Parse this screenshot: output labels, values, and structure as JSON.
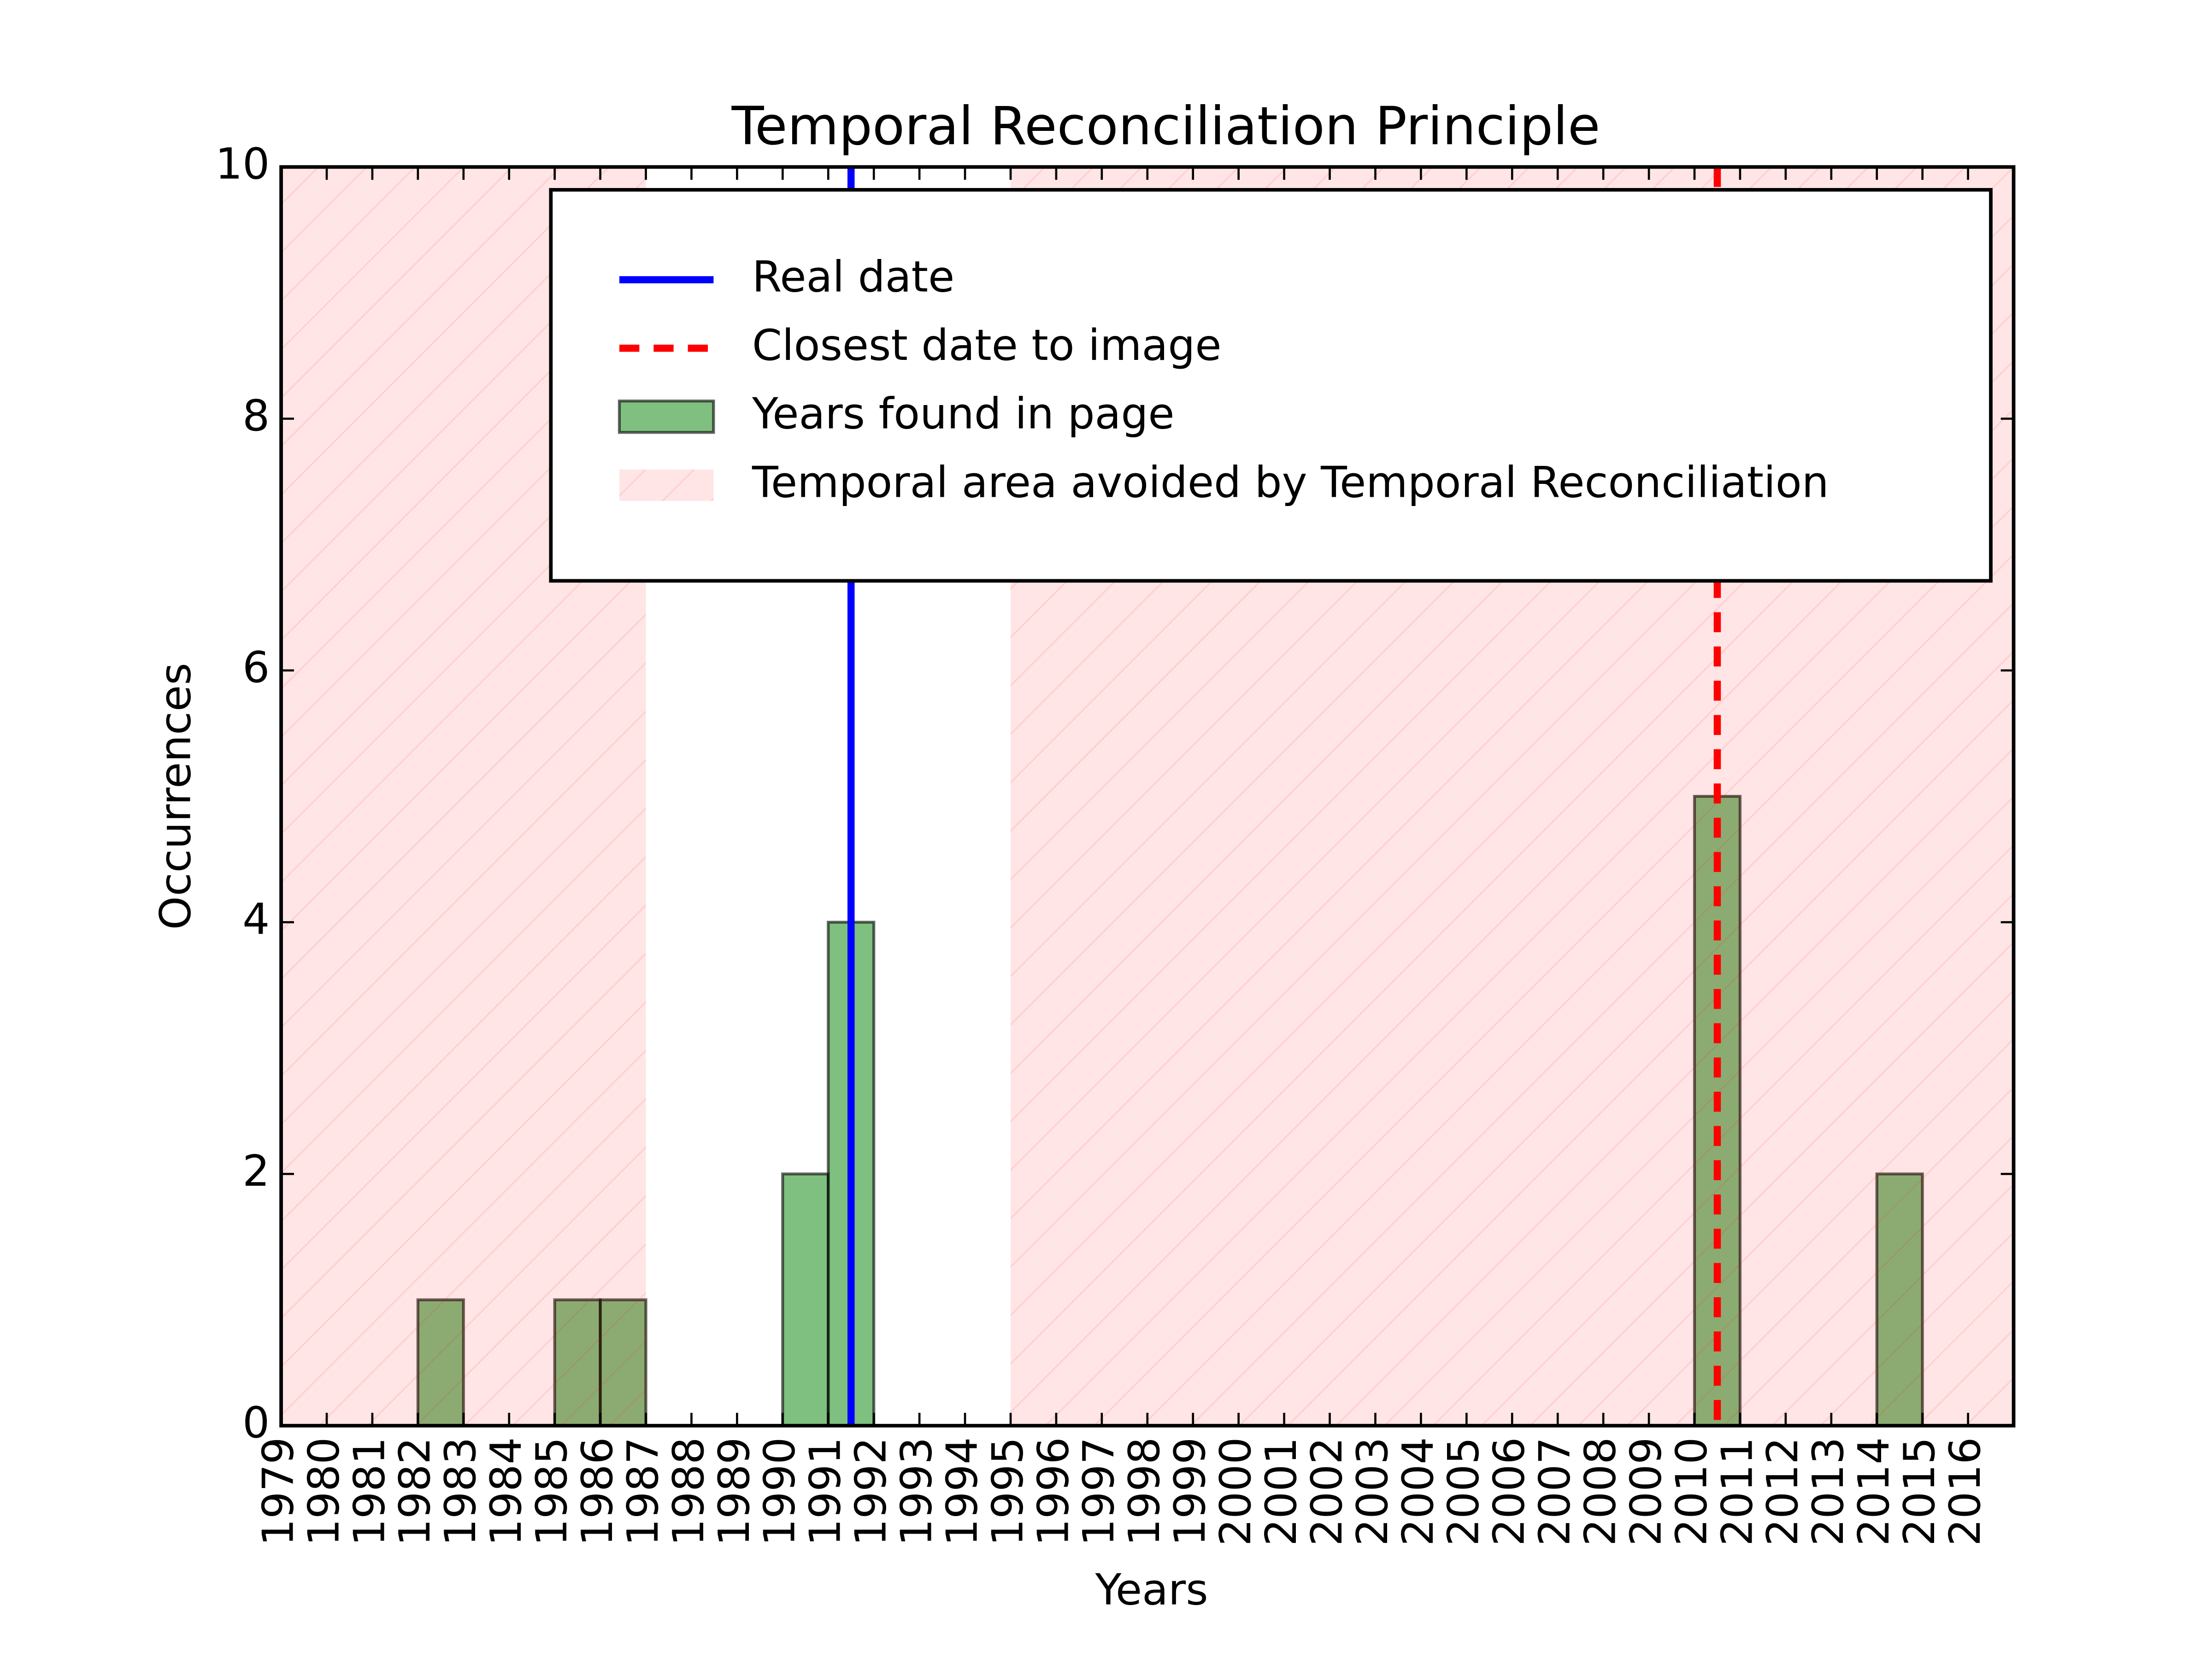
{
  "chart_data": {
    "type": "histogram",
    "title": "Temporal Reconciliation Principle",
    "x_label": "Years",
    "y_label": "Occurrences",
    "bins": [
      1979,
      1980,
      1981,
      1982,
      1983,
      1984,
      1985,
      1986,
      1987,
      1988,
      1989,
      1990,
      1991,
      1992,
      1993,
      1994,
      1995,
      1996,
      1997,
      1998,
      1999,
      2000,
      2001,
      2002,
      2003,
      2004,
      2005,
      2006,
      2007,
      2008,
      2009,
      2010,
      2011,
      2012,
      2013,
      2014,
      2015,
      2016,
      2017
    ],
    "values": [
      0,
      0,
      0,
      1,
      0,
      0,
      1,
      1,
      0,
      0,
      0,
      2,
      4,
      0,
      0,
      0,
      0,
      0,
      0,
      0,
      0,
      0,
      0,
      0,
      0,
      0,
      0,
      0,
      0,
      0,
      0,
      5,
      0,
      0,
      0,
      2,
      0,
      0
    ],
    "name": "Years found in page",
    "color": "#008000",
    "lines": [
      {
        "name": "Real date",
        "x": 1991.5,
        "color": "#0000ff",
        "style": "solid"
      },
      {
        "name": "Closest date to image",
        "x": 2010.5,
        "color": "#ff0000",
        "style": "dashed"
      }
    ],
    "shaded": {
      "name": "Temporal area avoided by Temporal Reconciliation",
      "color": "#ff0000",
      "ranges": [
        [
          1979,
          1987
        ],
        [
          1995,
          2017
        ]
      ]
    },
    "xlim": [
      1979,
      2017
    ],
    "ylim": [
      0,
      10
    ],
    "xticks": [
      1979,
      1980,
      1981,
      1982,
      1983,
      1984,
      1985,
      1986,
      1987,
      1988,
      1989,
      1990,
      1991,
      1992,
      1993,
      1994,
      1995,
      1996,
      1997,
      1998,
      1999,
      2000,
      2001,
      2002,
      2003,
      2004,
      2005,
      2006,
      2007,
      2008,
      2009,
      2010,
      2011,
      2012,
      2013,
      2014,
      2015,
      2016
    ],
    "yticks": [
      0,
      2,
      4,
      6,
      8,
      10
    ],
    "legend": "upper right"
  }
}
